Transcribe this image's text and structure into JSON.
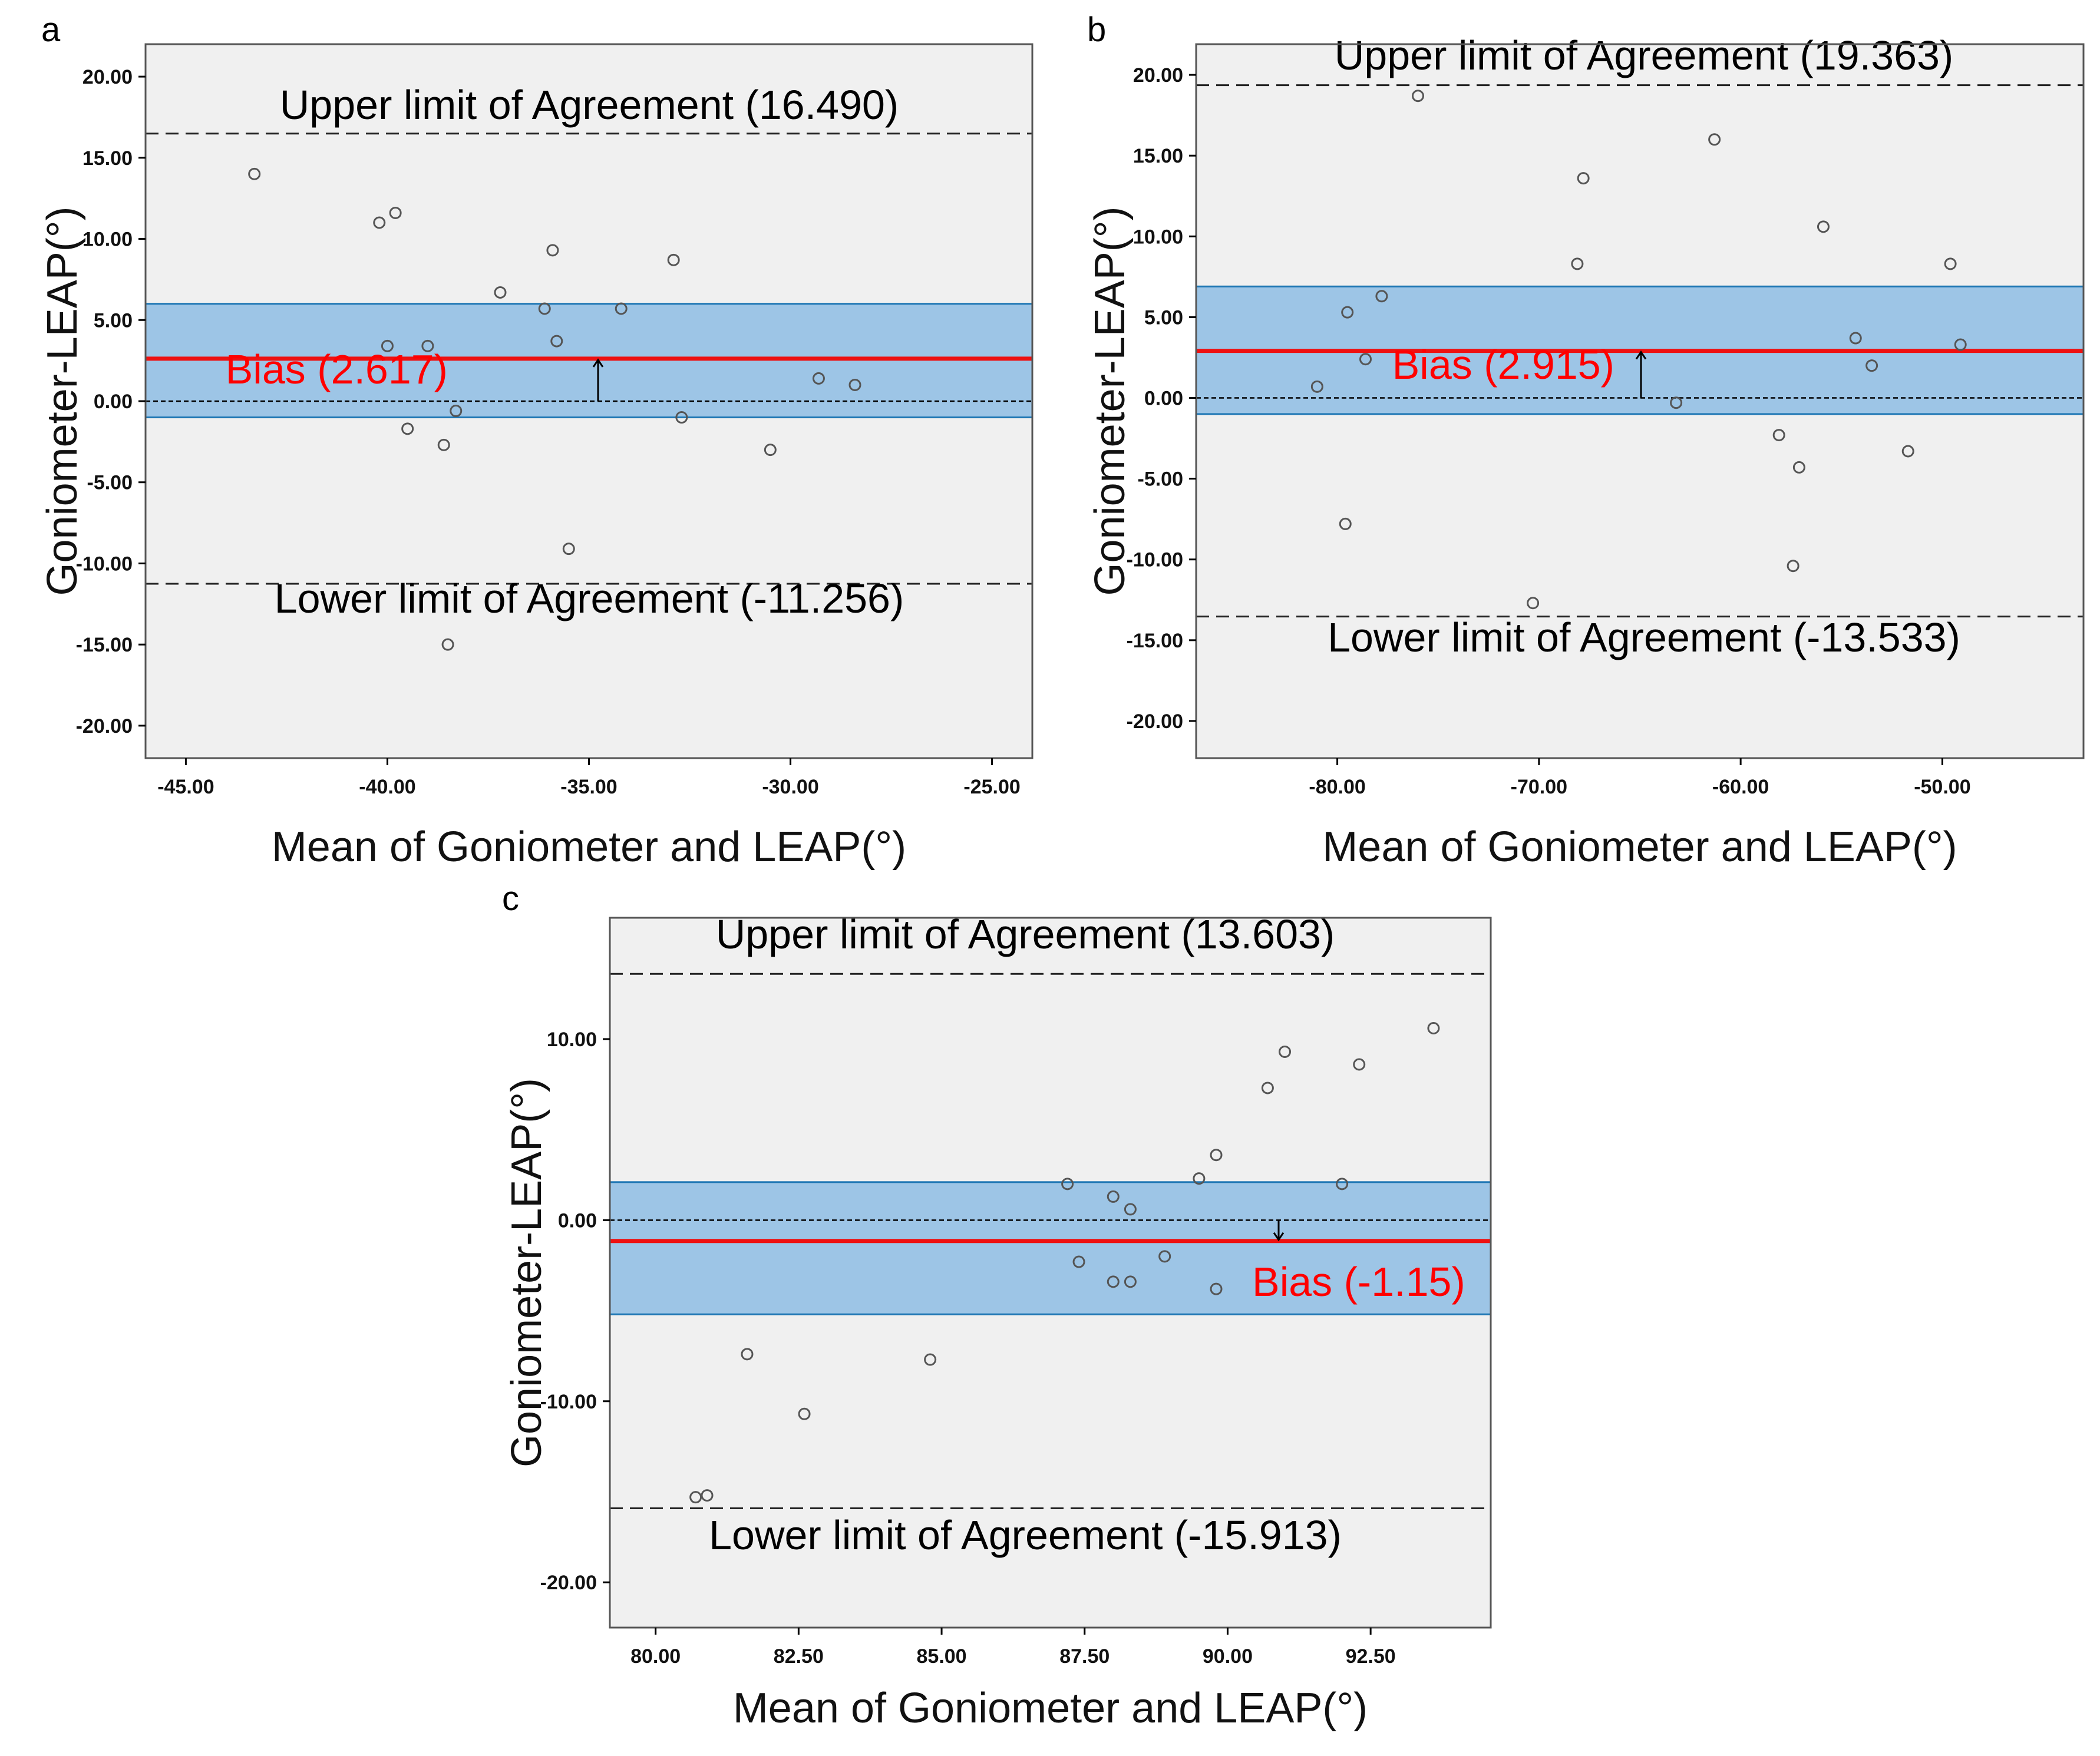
{
  "chart_data": [
    {
      "panel": "a",
      "type": "scatter",
      "title": "",
      "xlabel": "Mean of Goniometer and LEAP(°)",
      "ylabel": "Goniometer-LEAP(°)",
      "xlim": [
        -46.0,
        -24.0
      ],
      "ylim": [
        -22.0,
        22.0
      ],
      "xticks": [
        -45,
        -40,
        -35,
        -30,
        -25
      ],
      "yticks": [
        20,
        15,
        10,
        5,
        0,
        -5,
        -10,
        -15,
        -20
      ],
      "xtick_labels": [
        "-45.00",
        "-40.00",
        "-35.00",
        "-30.00",
        "-25.00"
      ],
      "ytick_labels": [
        "20.00",
        "15.00",
        "10.00",
        "5.00",
        "0.00",
        "-5.00",
        "-10.00",
        "-15.00",
        "-20.00"
      ],
      "upper_loa": 16.49,
      "lower_loa": -11.256,
      "bias": 2.617,
      "band": [
        -1.0,
        6.0
      ],
      "upper_label": "Upper limit of Agreement (16.490)",
      "lower_label": "Lower limit of Agreement (-11.256)",
      "bias_label": "Bias (2.617)",
      "grid": false,
      "points": [
        [
          -43.3,
          14.0
        ],
        [
          -40.2,
          11.0
        ],
        [
          -39.8,
          11.6
        ],
        [
          -40.0,
          3.4
        ],
        [
          -39.0,
          3.4
        ],
        [
          -39.5,
          -1.7
        ],
        [
          -38.6,
          -2.7
        ],
        [
          -38.3,
          -0.6
        ],
        [
          -38.5,
          -15.0
        ],
        [
          -37.2,
          6.7
        ],
        [
          -36.1,
          5.7
        ],
        [
          -35.9,
          9.3
        ],
        [
          -35.8,
          3.7
        ],
        [
          -35.5,
          -9.1
        ],
        [
          -34.2,
          5.7
        ],
        [
          -32.9,
          8.7
        ],
        [
          -32.7,
          -1.0
        ],
        [
          -30.5,
          -3.0
        ],
        [
          -29.3,
          1.4
        ],
        [
          -28.4,
          1.0
        ]
      ]
    },
    {
      "panel": "b",
      "type": "scatter",
      "title": "",
      "xlabel": "Mean of Goniometer and LEAP(°)",
      "ylabel": "Goniometer-LEAP(°)",
      "xlim": [
        -87.0,
        -43.0
      ],
      "ylim": [
        -22.3,
        21.9
      ],
      "xticks": [
        -80,
        -70,
        -60,
        -50
      ],
      "yticks": [
        20,
        15,
        10,
        5,
        0,
        -5,
        -10,
        -15,
        -20
      ],
      "xtick_labels": [
        "-80.00",
        "-70.00",
        "-60.00",
        "-50.00"
      ],
      "ytick_labels": [
        "20.00",
        "15.00",
        "10.00",
        "5.00",
        "0.00",
        "-5.00",
        "-10.00",
        "-15.00",
        "-20.00"
      ],
      "upper_loa": 19.363,
      "lower_loa": -13.533,
      "bias": 2.915,
      "band": [
        -1.0,
        6.9
      ],
      "upper_label": "Upper limit of Agreement (19.363)",
      "lower_label": "Lower limit of Agreement (-13.533)",
      "bias_label": "Bias (2.915)",
      "grid": false,
      "points": [
        [
          -81.0,
          0.7
        ],
        [
          -79.5,
          5.3
        ],
        [
          -79.6,
          -7.8
        ],
        [
          -78.6,
          2.4
        ],
        [
          -77.8,
          6.3
        ],
        [
          -76.0,
          18.7
        ],
        [
          -70.3,
          -12.7
        ],
        [
          -68.1,
          8.3
        ],
        [
          -67.8,
          13.6
        ],
        [
          -63.2,
          -0.3
        ],
        [
          -61.3,
          16.0
        ],
        [
          -58.1,
          -2.3
        ],
        [
          -57.4,
          -10.4
        ],
        [
          -57.1,
          -4.3
        ],
        [
          -55.9,
          10.6
        ],
        [
          -54.3,
          3.7
        ],
        [
          -53.5,
          2.0
        ],
        [
          -51.7,
          -3.3
        ],
        [
          -49.6,
          8.3
        ],
        [
          -49.1,
          3.3
        ]
      ]
    },
    {
      "panel": "c",
      "type": "scatter",
      "title": "",
      "xlabel": "Mean of Goniometer and LEAP(°)",
      "ylabel": "Goniometer-LEAP(°)",
      "xlim": [
        79.2,
        94.6
      ],
      "ylim": [
        -22.5,
        16.7
      ],
      "xticks": [
        80,
        82.5,
        85,
        87.5,
        90,
        92.5
      ],
      "yticks": [
        10,
        0,
        -10,
        -20
      ],
      "xtick_labels": [
        "80.00",
        "82.50",
        "85.00",
        "87.50",
        "90.00",
        "92.50"
      ],
      "ytick_labels": [
        "10.00",
        "0.00",
        "-10.00",
        "-20.00"
      ],
      "upper_loa": 13.603,
      "lower_loa": -15.913,
      "bias": -1.15,
      "band": [
        -5.2,
        2.1
      ],
      "upper_label": "Upper limit of Agreement (13.603)",
      "lower_label": "Lower limit of Agreement (-15.913)",
      "bias_label": "Bias (-1.15)",
      "grid": false,
      "points": [
        [
          80.7,
          -15.3
        ],
        [
          80.9,
          -15.2
        ],
        [
          81.6,
          -7.4
        ],
        [
          82.6,
          -10.7
        ],
        [
          84.8,
          -7.7
        ],
        [
          87.2,
          2.0
        ],
        [
          87.4,
          -2.3
        ],
        [
          88.0,
          1.3
        ],
        [
          88.0,
          -3.4
        ],
        [
          88.3,
          0.6
        ],
        [
          88.3,
          -3.4
        ],
        [
          88.9,
          -2.0
        ],
        [
          89.5,
          2.3
        ],
        [
          89.8,
          3.6
        ],
        [
          89.8,
          -3.8
        ],
        [
          90.7,
          7.3
        ],
        [
          91.0,
          9.3
        ],
        [
          92.0,
          2.0
        ],
        [
          92.3,
          8.6
        ],
        [
          93.6,
          10.6
        ]
      ]
    }
  ],
  "panels": [
    {
      "letter": "a"
    },
    {
      "letter": "b"
    },
    {
      "letter": "c"
    }
  ],
  "colors": {
    "plot_bg": "#f0f0f0",
    "band_fill": "#9dc5e6",
    "band_edge": "#1f77b4",
    "bias_line": "#ee1111",
    "bias_text": "#ff0000",
    "loa_line": "#222222",
    "point_stroke": "#555555"
  }
}
